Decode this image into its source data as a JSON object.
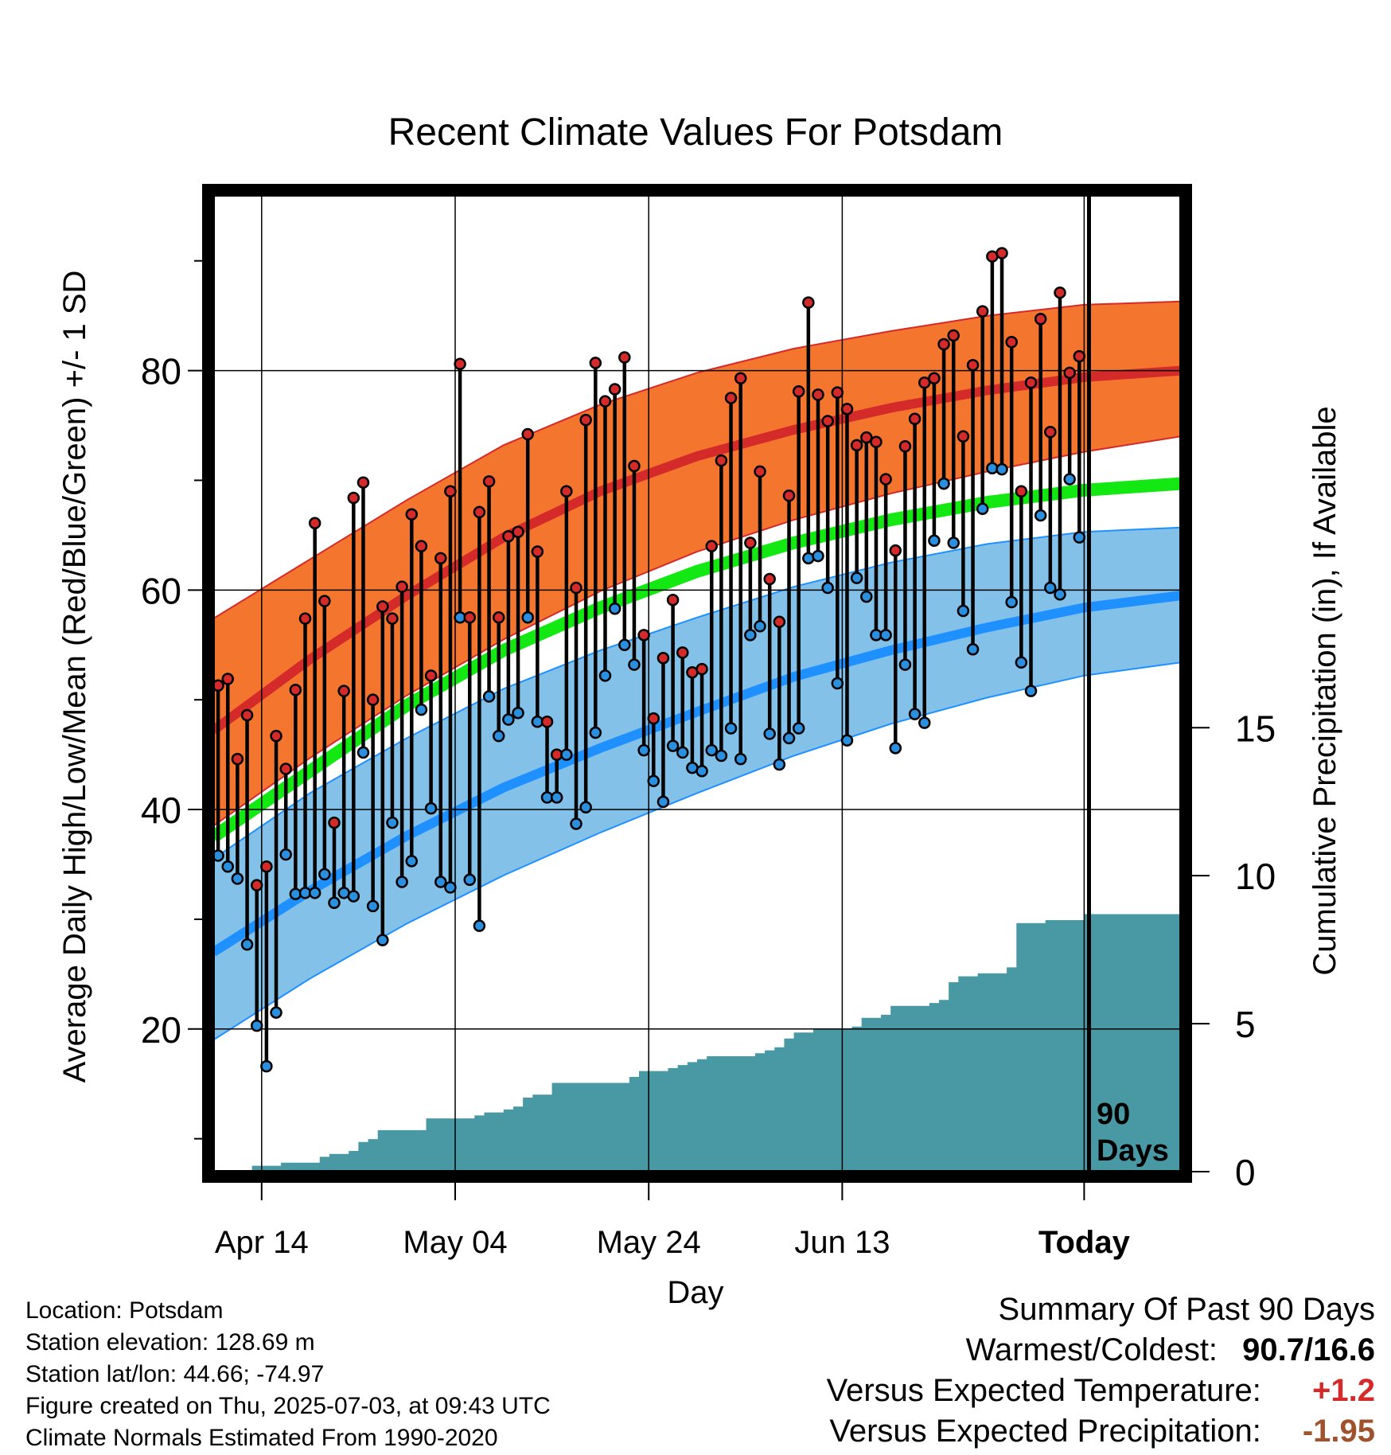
{
  "chart_data": {
    "type": "line",
    "title": "Recent Climate Values For Potsdam",
    "xlabel": "Day",
    "ylabel": "Average Daily High/Low/Mean (Red/Blue/Green) +/- 1 SD",
    "y2label": "Cumulative Precipitation (in), If Available",
    "x_ticks": [
      "Apr 14",
      "May 04",
      "May 24",
      "Jun 13",
      "Today"
    ],
    "y_ticks": [
      20,
      40,
      60,
      80
    ],
    "y2_ticks": [
      0,
      5,
      10,
      15
    ],
    "ylim": [
      7,
      96
    ],
    "y2lim": [
      0,
      33
    ],
    "days_shown": 100,
    "today_day": 90,
    "today_label": "90 Days",
    "colors": {
      "high_band": "#f4762e",
      "high_mean": "#d42a2a",
      "low_band": "#83c1e9",
      "low_mean": "#1e90ff",
      "mean": "#13e813",
      "precip": "#4899a4",
      "high_dot": "#d42a2a",
      "low_dot": "#2b8fe0"
    },
    "normal_high": {
      "day": [
        0,
        10,
        20,
        30,
        40,
        50,
        60,
        70,
        80,
        90,
        100
      ],
      "mean": [
        47.2,
        53.7,
        59.5,
        64.8,
        69.0,
        72.2,
        74.6,
        76.6,
        78.2,
        79.4,
        80.0
      ],
      "minus_sd": [
        38.5,
        44.7,
        50.4,
        55.5,
        59.9,
        63.5,
        66.4,
        68.8,
        70.8,
        72.6,
        74.0
      ],
      "plus_sd": [
        57.4,
        62.8,
        68.2,
        73.2,
        76.9,
        79.8,
        82.0,
        83.6,
        85.0,
        86.0,
        86.3
      ]
    },
    "normal_mean": {
      "day": [
        0,
        10,
        20,
        30,
        40,
        50,
        60,
        70,
        80,
        90,
        100
      ],
      "value": [
        37.5,
        43.5,
        49.5,
        54.5,
        58.4,
        61.7,
        64.3,
        66.4,
        68.0,
        69.1,
        69.7
      ]
    },
    "normal_low": {
      "day": [
        0,
        10,
        20,
        30,
        40,
        50,
        60,
        70,
        80,
        90,
        100
      ],
      "mean": [
        27.0,
        32.6,
        37.6,
        42.0,
        45.6,
        48.9,
        52.1,
        54.5,
        56.6,
        58.4,
        59.5
      ],
      "minus_sd": [
        19.0,
        24.6,
        29.6,
        34.0,
        37.9,
        41.5,
        44.9,
        47.8,
        50.2,
        52.2,
        53.4
      ],
      "plus_sd": [
        35.5,
        41.5,
        46.5,
        51.0,
        54.5,
        57.5,
        60.3,
        62.5,
        64.2,
        65.3,
        65.7
      ]
    },
    "daily_high": [
      51.3,
      51.9,
      44.6,
      48.6,
      33.1,
      34.8,
      46.7,
      43.7,
      50.9,
      57.4,
      66.1,
      59.0,
      38.8,
      50.8,
      68.4,
      69.8,
      50.0,
      58.5,
      57.4,
      60.3,
      66.9,
      64.0,
      52.2,
      62.9,
      69.0,
      80.6,
      57.5,
      67.1,
      69.9,
      57.5,
      64.9,
      65.3,
      74.2,
      63.5,
      48.0,
      45.0,
      69.0,
      60.2,
      75.5,
      80.7,
      77.2,
      78.3,
      81.2,
      71.3,
      55.9,
      48.3,
      53.8,
      59.1,
      54.3,
      52.5,
      52.8,
      64.0,
      71.8,
      77.5,
      79.3,
      64.3,
      70.8,
      61.0,
      57.1,
      68.6,
      78.1,
      86.2,
      77.8,
      75.4,
      78.0,
      76.5,
      73.2,
      73.9,
      73.5,
      70.1,
      63.6,
      73.1,
      75.6,
      78.9,
      79.3,
      82.4,
      83.2,
      74.0,
      80.5,
      85.4,
      90.4,
      90.7,
      82.6,
      69.0,
      78.9,
      84.7,
      74.4,
      87.1,
      79.8,
      81.3
    ],
    "daily_low": [
      35.8,
      34.8,
      33.7,
      27.7,
      20.3,
      16.6,
      21.5,
      35.9,
      32.3,
      32.4,
      32.4,
      34.1,
      31.5,
      32.4,
      32.1,
      45.2,
      31.2,
      28.1,
      38.8,
      33.4,
      35.3,
      49.1,
      40.1,
      33.4,
      32.9,
      57.5,
      33.6,
      29.4,
      50.3,
      46.7,
      48.2,
      48.8,
      57.5,
      48.0,
      41.1,
      41.1,
      45.0,
      38.7,
      40.2,
      47.0,
      52.2,
      58.3,
      55.0,
      53.2,
      45.4,
      42.6,
      40.7,
      45.8,
      45.2,
      43.8,
      43.5,
      45.4,
      44.9,
      47.4,
      44.6,
      55.9,
      56.7,
      46.9,
      44.1,
      46.5,
      47.4,
      62.9,
      63.1,
      60.2,
      51.5,
      46.3,
      61.1,
      59.4,
      55.9,
      55.9,
      45.6,
      53.2,
      48.7,
      47.9,
      64.5,
      69.7,
      64.3,
      58.1,
      54.6,
      67.4,
      71.1,
      71.0,
      58.9,
      53.4,
      50.8,
      66.8,
      60.2,
      59.6,
      70.1,
      64.8
    ],
    "cumulative_precip": [
      0.0,
      0.0,
      0.0,
      0.0,
      0.2,
      0.2,
      0.2,
      0.3,
      0.3,
      0.3,
      0.3,
      0.5,
      0.6,
      0.6,
      0.7,
      1.0,
      1.1,
      1.4,
      1.4,
      1.4,
      1.4,
      1.4,
      1.8,
      1.8,
      1.8,
      1.8,
      1.8,
      1.9,
      2.0,
      2.0,
      2.1,
      2.2,
      2.5,
      2.6,
      2.6,
      3.0,
      3.0,
      3.0,
      3.0,
      3.0,
      3.0,
      3.0,
      3.0,
      3.2,
      3.4,
      3.4,
      3.4,
      3.5,
      3.6,
      3.7,
      3.8,
      3.9,
      3.9,
      3.9,
      3.9,
      3.9,
      4.0,
      4.1,
      4.2,
      4.5,
      4.7,
      4.7,
      4.8,
      4.8,
      4.8,
      4.8,
      4.9,
      5.2,
      5.2,
      5.3,
      5.6,
      5.6,
      5.6,
      5.6,
      5.7,
      5.8,
      6.4,
      6.6,
      6.6,
      6.7,
      6.7,
      6.7,
      6.9,
      8.4,
      8.4,
      8.4,
      8.5,
      8.5,
      8.5,
      8.5,
      8.7,
      8.7,
      8.7,
      8.7,
      8.7,
      8.7,
      8.7,
      8.7,
      8.7,
      8.7,
      8.7
    ]
  },
  "info": {
    "location": "Location: Potsdam",
    "elevation": "Station elevation: 128.69 m",
    "latlon": "Station lat/lon: 44.66; -74.97",
    "created": "Figure created on Thu, 2025-07-03, at 09:43 UTC",
    "normals": "Climate Normals Estimated From 1990-2020"
  },
  "summary": {
    "title": "Summary Of Past 90 Days",
    "warm_cold_label": "Warmest/Coldest:",
    "warm_cold_value": "90.7/16.6",
    "temp_label": "Versus Expected Temperature:",
    "temp_value": "+1.2",
    "temp_color": "#d42a2a",
    "precip_label": "Versus Expected Precipitation:",
    "precip_value": "-1.95",
    "precip_color": "#a0522d"
  }
}
